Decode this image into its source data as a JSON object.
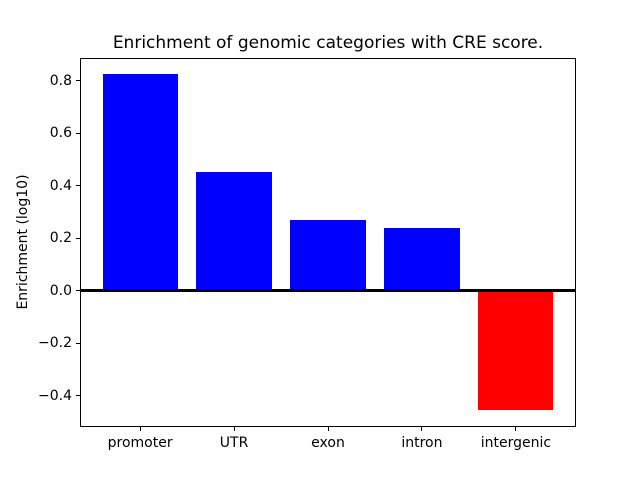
{
  "figure": {
    "title": "Enrichment of genomic categories with CRE score.",
    "ylabel": "Enrichment (log10)"
  },
  "chart_data": {
    "type": "bar",
    "title": "Enrichment of genomic categories with CRE score.",
    "xlabel": "",
    "ylabel": "Enrichment (log10)",
    "categories": [
      "promoter",
      "UTR",
      "exon",
      "intron",
      "intergenic"
    ],
    "values": [
      0.825,
      0.455,
      0.27,
      0.24,
      -0.455
    ],
    "bar_colors": [
      "#0000ff",
      "#0000ff",
      "#0000ff",
      "#0000ff",
      "#ff0000"
    ],
    "positive_color": "#0000ff",
    "negative_color": "#ff0000",
    "bar_width": 0.8,
    "y_ticks": [
      -0.4,
      -0.2,
      0.0,
      0.2,
      0.4,
      0.6,
      0.8
    ],
    "y_tick_labels": [
      "−0.4",
      "−0.2",
      "0.0",
      "0.2",
      "0.4",
      "0.6",
      "0.8"
    ],
    "ylim": [
      -0.519,
      0.889
    ],
    "xlim": [
      -0.64,
      4.64
    ],
    "zero_line": {
      "y": 0,
      "color": "#000000"
    },
    "grid": false,
    "legend": null,
    "background_color": "#ffffff",
    "spine_color": "#000000"
  }
}
